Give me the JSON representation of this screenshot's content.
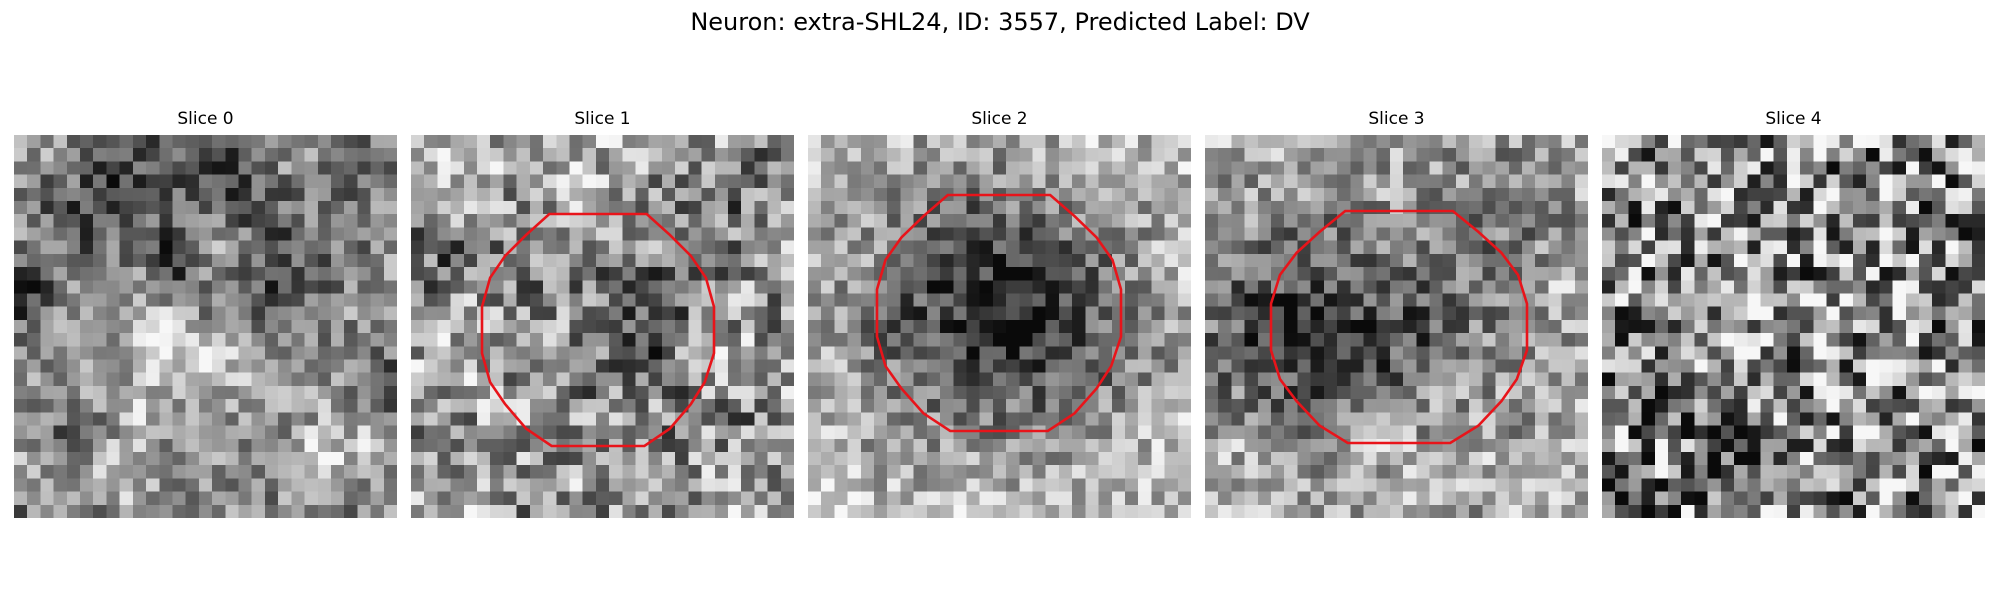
{
  "figure": {
    "title": "Neuron: extra-SHL24, ID: 3557, Predicted Label: DV"
  },
  "slices": [
    {
      "label": "Slice 0",
      "has_roi": false,
      "pattern": "dark-top-diagonal-bright-band"
    },
    {
      "label": "Slice 1",
      "has_roi": true,
      "pattern": "faint-dark-center"
    },
    {
      "label": "Slice 2",
      "has_roi": true,
      "pattern": "dark-blob-bright-ring"
    },
    {
      "label": "Slice 3",
      "has_roi": true,
      "pattern": "dark-blob-left-shifted"
    },
    {
      "label": "Slice 4",
      "has_roi": false,
      "pattern": "noise-dark-streaks"
    }
  ],
  "colors": {
    "roi_outline": "#e8141a",
    "background": "#ffffff"
  }
}
